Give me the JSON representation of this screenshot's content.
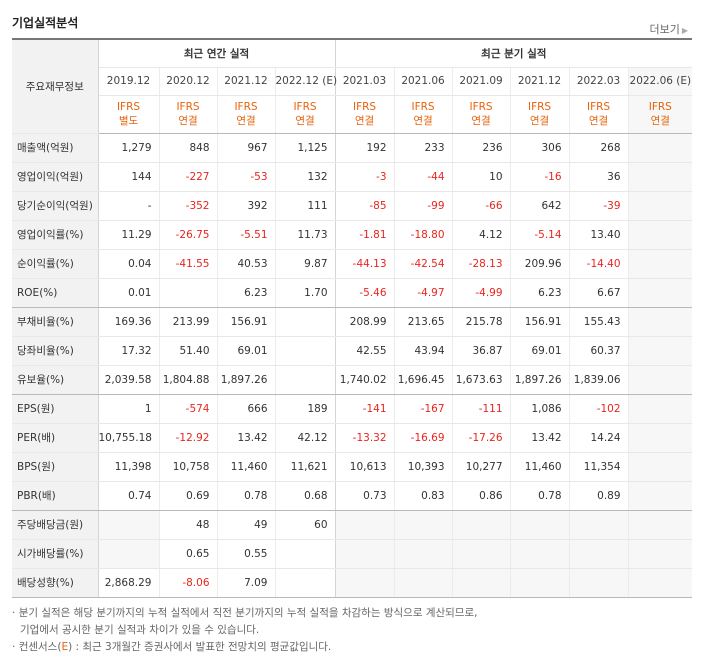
{
  "header": {
    "title": "기업실적분석",
    "more_label": "더보기"
  },
  "table": {
    "label_header": "주요재무정보",
    "groups": [
      "최근 연간 실적",
      "최근 분기 실적"
    ],
    "periods": [
      "2019.12",
      "2020.12",
      "2021.12",
      "2022.12 (E)",
      "2021.03",
      "2021.06",
      "2021.09",
      "2021.12",
      "2022.03",
      "2022.06 (E)"
    ],
    "standards": [
      [
        "IFRS",
        "별도"
      ],
      [
        "IFRS",
        "연결"
      ],
      [
        "IFRS",
        "연결"
      ],
      [
        "IFRS",
        "연결"
      ],
      [
        "IFRS",
        "연결"
      ],
      [
        "IFRS",
        "연결"
      ],
      [
        "IFRS",
        "연결"
      ],
      [
        "IFRS",
        "연결"
      ],
      [
        "IFRS",
        "연결"
      ],
      [
        "IFRS",
        "연결"
      ]
    ],
    "rows": [
      {
        "label": "매출액(억원)",
        "values": [
          "1,279",
          "848",
          "967",
          "1,125",
          "192",
          "233",
          "236",
          "306",
          "268",
          ""
        ]
      },
      {
        "label": "영업이익(억원)",
        "values": [
          "144",
          "-227",
          "-53",
          "132",
          "-3",
          "-44",
          "10",
          "-16",
          "36",
          ""
        ]
      },
      {
        "label": "당기순이익(억원)",
        "values": [
          "-",
          "-352",
          "392",
          "111",
          "-85",
          "-99",
          "-66",
          "642",
          "-39",
          ""
        ]
      },
      {
        "label": "영업이익률(%)",
        "values": [
          "11.29",
          "-26.75",
          "-5.51",
          "11.73",
          "-1.81",
          "-18.80",
          "4.12",
          "-5.14",
          "13.40",
          ""
        ]
      },
      {
        "label": "순이익률(%)",
        "values": [
          "0.04",
          "-41.55",
          "40.53",
          "9.87",
          "-44.13",
          "-42.54",
          "-28.13",
          "209.96",
          "-14.40",
          ""
        ]
      },
      {
        "label": "ROE(%)",
        "values": [
          "0.01",
          "",
          "6.23",
          "1.70",
          "-5.46",
          "-4.97",
          "-4.99",
          "6.23",
          "6.67",
          ""
        ]
      },
      {
        "label": "부채비율(%)",
        "values": [
          "169.36",
          "213.99",
          "156.91",
          "",
          "208.99",
          "213.65",
          "215.78",
          "156.91",
          "155.43",
          ""
        ]
      },
      {
        "label": "당좌비율(%)",
        "values": [
          "17.32",
          "51.40",
          "69.01",
          "",
          "42.55",
          "43.94",
          "36.87",
          "69.01",
          "60.37",
          ""
        ]
      },
      {
        "label": "유보율(%)",
        "values": [
          "2,039.58",
          "1,804.88",
          "1,897.26",
          "",
          "1,740.02",
          "1,696.45",
          "1,673.63",
          "1,897.26",
          "1,839.06",
          ""
        ]
      },
      {
        "label": "EPS(원)",
        "values": [
          "1",
          "-574",
          "666",
          "189",
          "-141",
          "-167",
          "-111",
          "1,086",
          "-102",
          ""
        ]
      },
      {
        "label": "PER(배)",
        "values": [
          "10,755.18",
          "-12.92",
          "13.42",
          "42.12",
          "-13.32",
          "-16.69",
          "-17.26",
          "13.42",
          "14.24",
          ""
        ]
      },
      {
        "label": "BPS(원)",
        "values": [
          "11,398",
          "10,758",
          "11,460",
          "11,621",
          "10,613",
          "10,393",
          "10,277",
          "11,460",
          "11,354",
          ""
        ]
      },
      {
        "label": "PBR(배)",
        "values": [
          "0.74",
          "0.69",
          "0.78",
          "0.68",
          "0.73",
          "0.83",
          "0.86",
          "0.78",
          "0.89",
          ""
        ]
      },
      {
        "label": "주당배당금(원)",
        "values": [
          "",
          "48",
          "49",
          "60",
          "",
          "",
          "",
          "",
          "",
          ""
        ]
      },
      {
        "label": "시가배당률(%)",
        "values": [
          "",
          "0.65",
          "0.55",
          "",
          "",
          "",
          "",
          "",
          "",
          ""
        ]
      },
      {
        "label": "배당성향(%)",
        "values": [
          "2,868.29",
          "-8.06",
          "7.09",
          "",
          "",
          "",
          "",
          "",
          "",
          ""
        ]
      }
    ]
  },
  "notes": {
    "line1": "분기 실적은 해당 분기까지의 누적 실적에서 직전 분기까지의 누적 실적을 차감하는 방식으로 계산되므로,",
    "line2": "기업에서 공시한 분기 실적과 차이가 있을 수 있습니다.",
    "line3_prefix": "컨센서스(",
    "line3_e": "E",
    "line3_suffix": ") : 최근 3개월간 증권사에서 발표한 전망치의 평균값입니다."
  }
}
